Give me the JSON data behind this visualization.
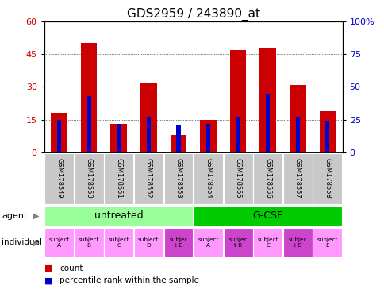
{
  "title": "GDS2959 / 243890_at",
  "gsm_labels": [
    "GSM178549",
    "GSM178550",
    "GSM178551",
    "GSM178552",
    "GSM178553",
    "GSM178554",
    "GSM178555",
    "GSM178556",
    "GSM178557",
    "GSM178558"
  ],
  "count_values": [
    18,
    50,
    13,
    32,
    8,
    15,
    47,
    48,
    31,
    19
  ],
  "percentile_values": [
    25,
    43,
    22,
    27,
    21,
    22,
    27,
    45,
    27,
    24
  ],
  "ylim_left": [
    0,
    60
  ],
  "ylim_right": [
    0,
    100
  ],
  "yticks_left": [
    0,
    15,
    30,
    45,
    60
  ],
  "ytick_labels_left": [
    "0",
    "15",
    "30",
    "45",
    "60"
  ],
  "yticks_right": [
    0,
    25,
    50,
    75,
    100
  ],
  "ytick_labels_right": [
    "0",
    "25",
    "50",
    "75",
    "100%"
  ],
  "bar_color_red": "#cc0000",
  "bar_color_blue": "#0000cc",
  "agent_groups": [
    {
      "label": "untreated",
      "start": 0,
      "end": 5,
      "color": "#99ff99"
    },
    {
      "label": "G-CSF",
      "start": 5,
      "end": 10,
      "color": "#00cc00"
    }
  ],
  "individual_labels": [
    "subject\nA",
    "subject\nB",
    "subject\nC",
    "subject\nD",
    "subjec\nt E",
    "subject\nA",
    "subjec\nt B",
    "subject\nC",
    "subjec\nt D",
    "subject\nE"
  ],
  "individual_colors": [
    "#ff99ff",
    "#ff99ff",
    "#ff99ff",
    "#ff99ff",
    "#cc44cc",
    "#ff99ff",
    "#cc44cc",
    "#ff99ff",
    "#cc44cc",
    "#ff99ff"
  ],
  "tick_bg_color": "#c8c8c8",
  "title_fontsize": 11,
  "axis_label_color_left": "#cc0000",
  "axis_label_color_right": "#0000cc",
  "legend_count_color": "#cc0000",
  "legend_percentile_color": "#0000cc",
  "fig_width": 4.85,
  "fig_height": 3.84,
  "fig_dpi": 100
}
